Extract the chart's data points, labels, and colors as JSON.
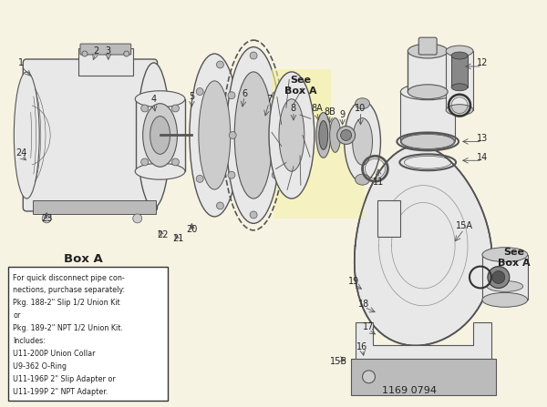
{
  "bg_color": "#f7f3e3",
  "fig_width": 6.0,
  "fig_height": 4.47,
  "dpi": 100,
  "line_color": "#555555",
  "dark_color": "#333333",
  "light_gray": "#cccccc",
  "mid_gray": "#bbbbbb",
  "face_color": "#e8e8e8",
  "white": "#ffffff",
  "yellow_highlight": "#f5f0a0",
  "text_color": "#222222",
  "box_bg": "#ffffff",
  "box_a_text_lines": [
    "For quick disconnect pipe con-",
    "nections, purchase separately:",
    "Pkg. 188-2\" Slip 1/2 Union Kit",
    "or",
    "Pkg. 189-2\" NPT 1/2 Union Kit.",
    "Includes:",
    "U11-200P Union Collar",
    "U9-362 O-Ring",
    "U11-196P 2\" Slip Adapter or",
    "U11-199P 2\" NPT Adapter."
  ],
  "part_number": "1169 0794"
}
